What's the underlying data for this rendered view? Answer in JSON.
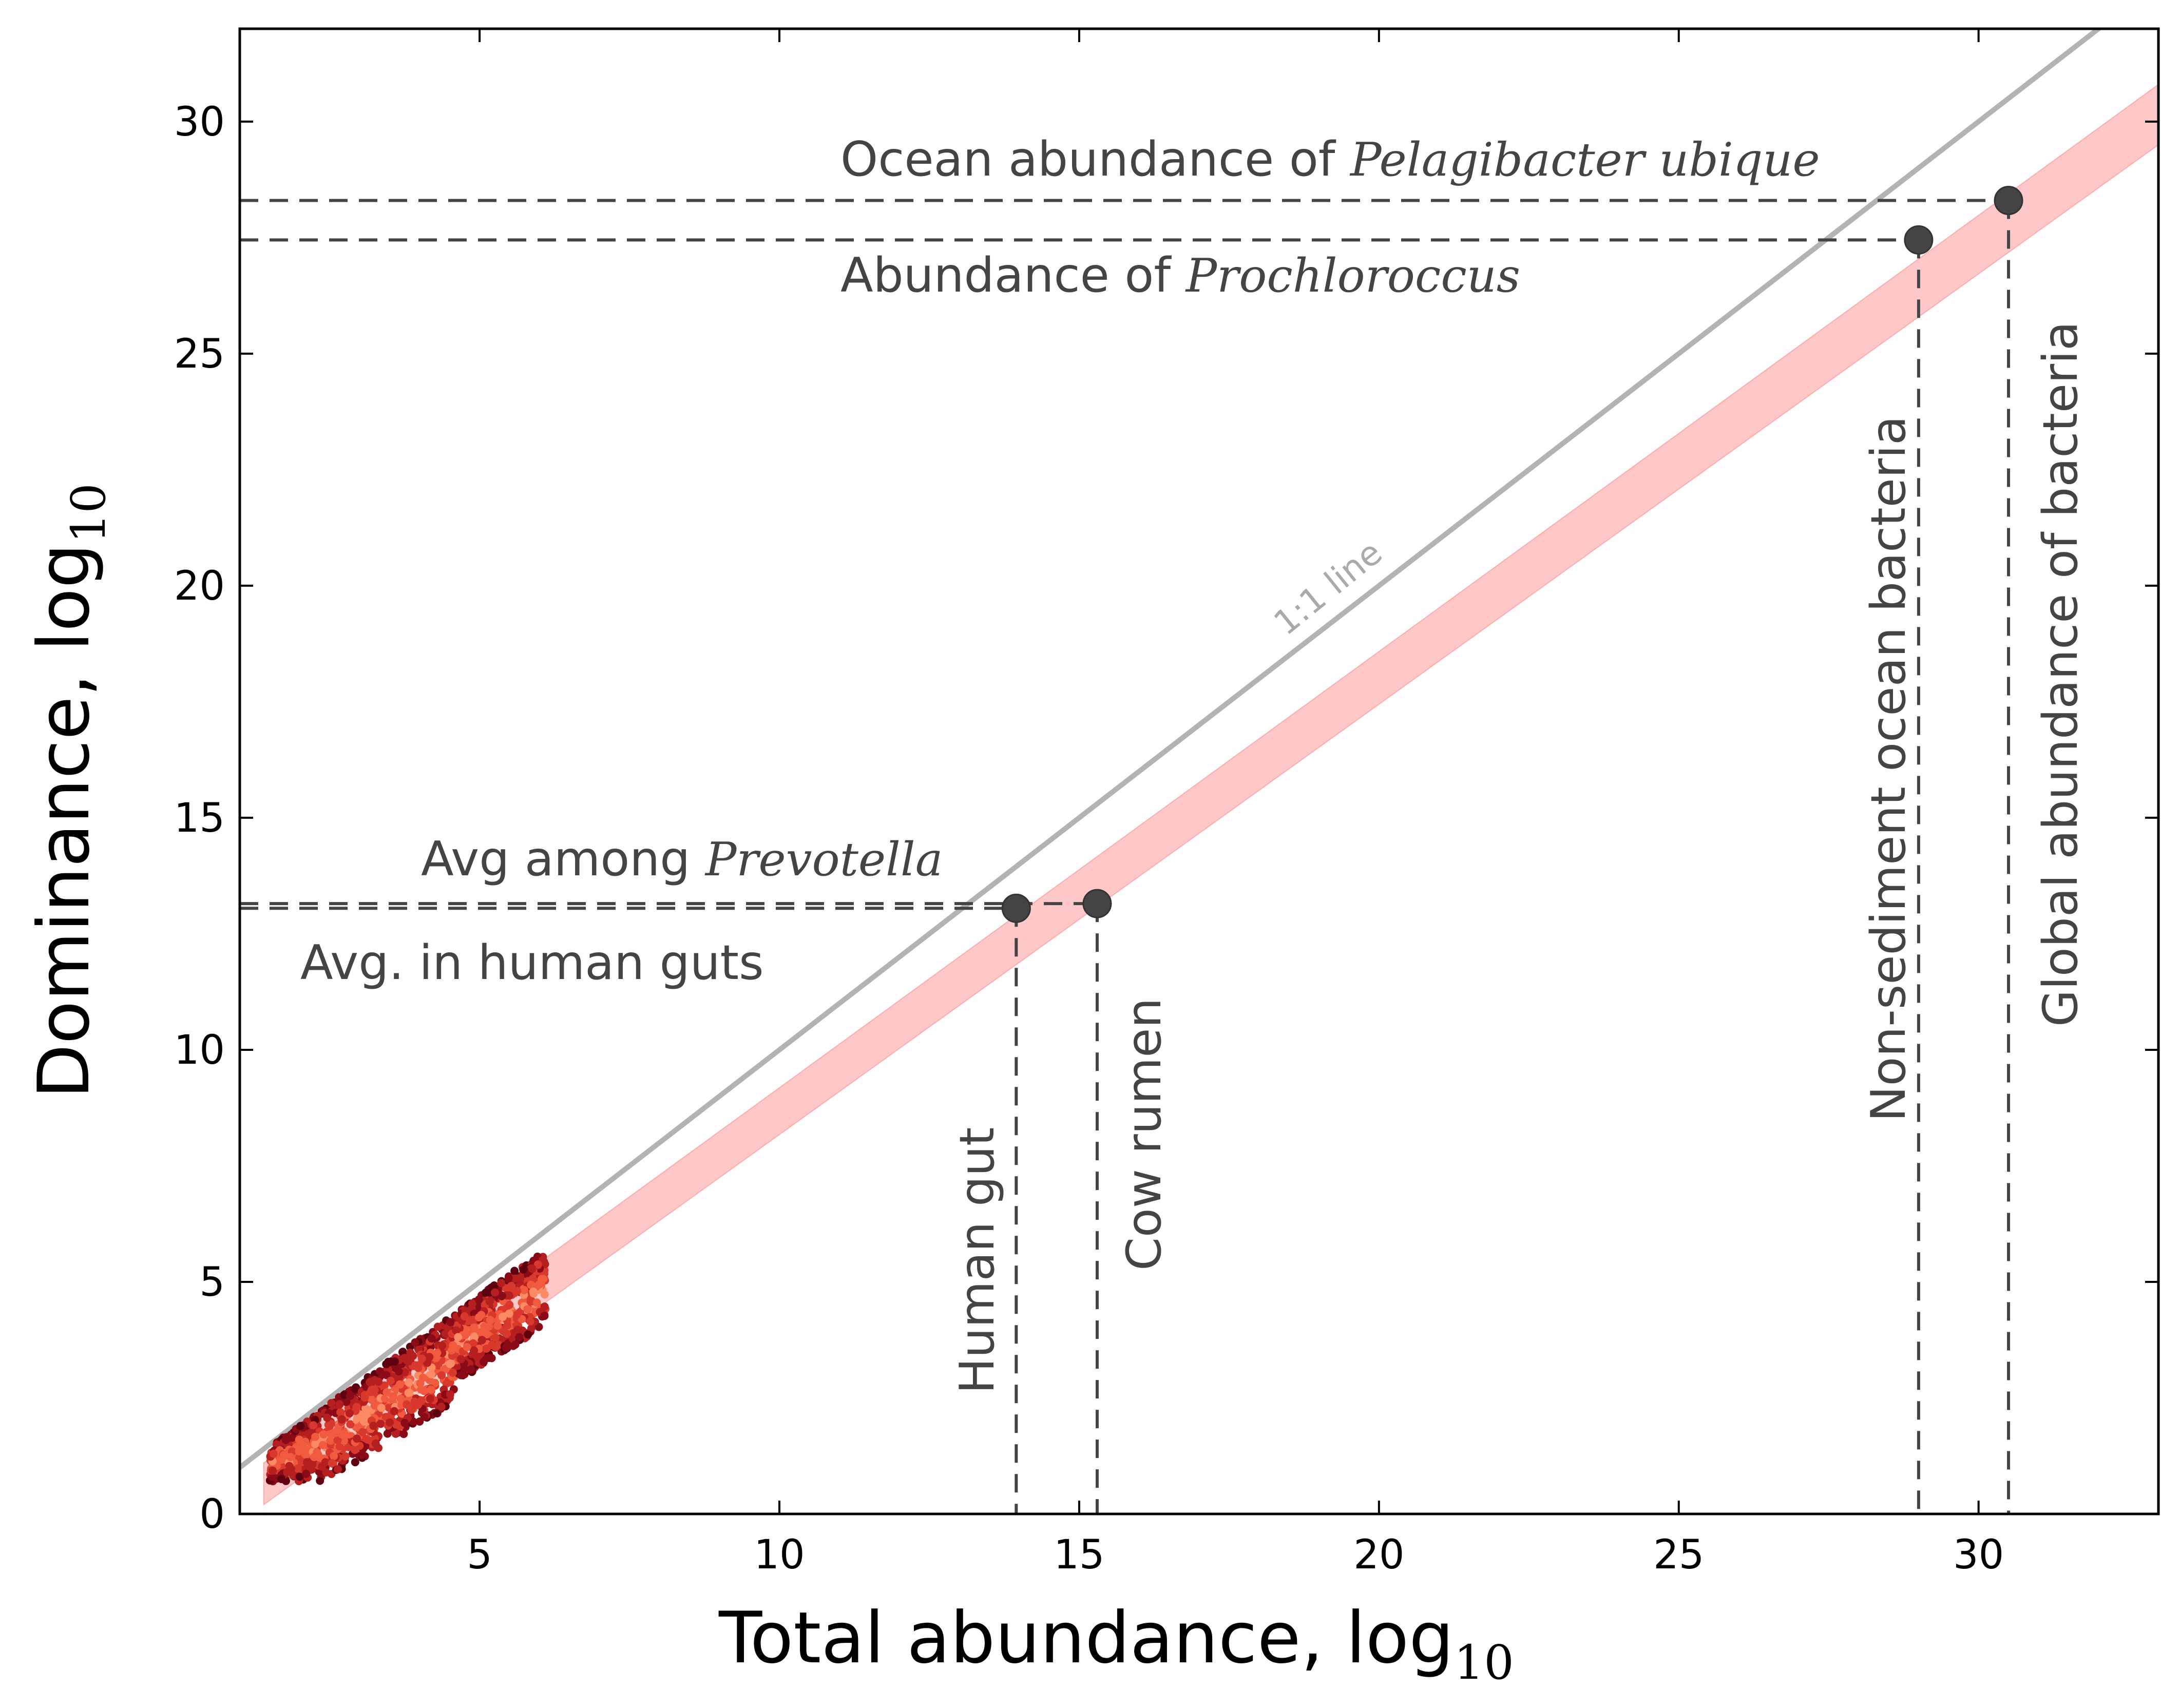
{
  "chart_data": {
    "type": "scatter",
    "xlabel": "Total abundance, log",
    "xlabel_sub": "10",
    "ylabel": "Dominance, log",
    "ylabel_sub": "10",
    "xlim": [
      1,
      33
    ],
    "ylim": [
      0,
      32
    ],
    "xticks": [
      5,
      10,
      15,
      20,
      25,
      30
    ],
    "yticks": [
      0,
      5,
      10,
      15,
      20,
      25,
      30
    ],
    "grid": false,
    "colors": {
      "one_to_one": "#b3b3b3",
      "band": "#ffc8c8",
      "band_edge": "#ff8a8a",
      "points": "#444444",
      "guides": "#444444",
      "hex_scale": [
        "#5e0010",
        "#8a0b17",
        "#b51f1f",
        "#d9382c",
        "#f05a3e",
        "#fb8a65"
      ]
    },
    "one_to_one_line": {
      "label": "1:1 line",
      "from": [
        1,
        1
      ],
      "to": [
        33,
        33
      ]
    },
    "prediction_band": {
      "lower": {
        "from": [
          1.4,
          0.2
        ],
        "to": [
          33,
          29.5
        ]
      },
      "upper": {
        "from": [
          1.4,
          1.1
        ],
        "to": [
          33,
          30.8
        ]
      }
    },
    "points": [
      {
        "label": "Human gut",
        "x": 13.95,
        "y": 13.05
      },
      {
        "label": "Cow rumen",
        "x": 15.3,
        "y": 13.15
      },
      {
        "label": "Non-sediment ocean bacteria",
        "x": 29.0,
        "y": 27.45
      },
      {
        "label": "Global abundance of bacteria",
        "x": 30.5,
        "y": 28.3
      }
    ],
    "horizontal_refs": [
      {
        "y": 28.3,
        "x_end": 30.5,
        "label_prefix": "Ocean abundance of ",
        "label_italic": "Pelagibacter ubique",
        "side": "above"
      },
      {
        "y": 27.45,
        "x_end": 29.0,
        "label_prefix": "Abundance of ",
        "label_italic": "Prochloroccus",
        "side": "below"
      },
      {
        "y": 13.15,
        "x_end": 15.3,
        "label_prefix": "Avg among ",
        "label_italic": "Prevotella",
        "side": "above"
      },
      {
        "y": 13.05,
        "x_end": 13.95,
        "label_prefix": "Avg. in human guts",
        "label_italic": "",
        "side": "below"
      }
    ],
    "hexbin_cloud": {
      "x_range": [
        1.5,
        6.1
      ],
      "y_range": [
        0.7,
        5.6
      ],
      "description_values": "dense cloud of sampled (total abundance, dominance) pairs"
    }
  }
}
